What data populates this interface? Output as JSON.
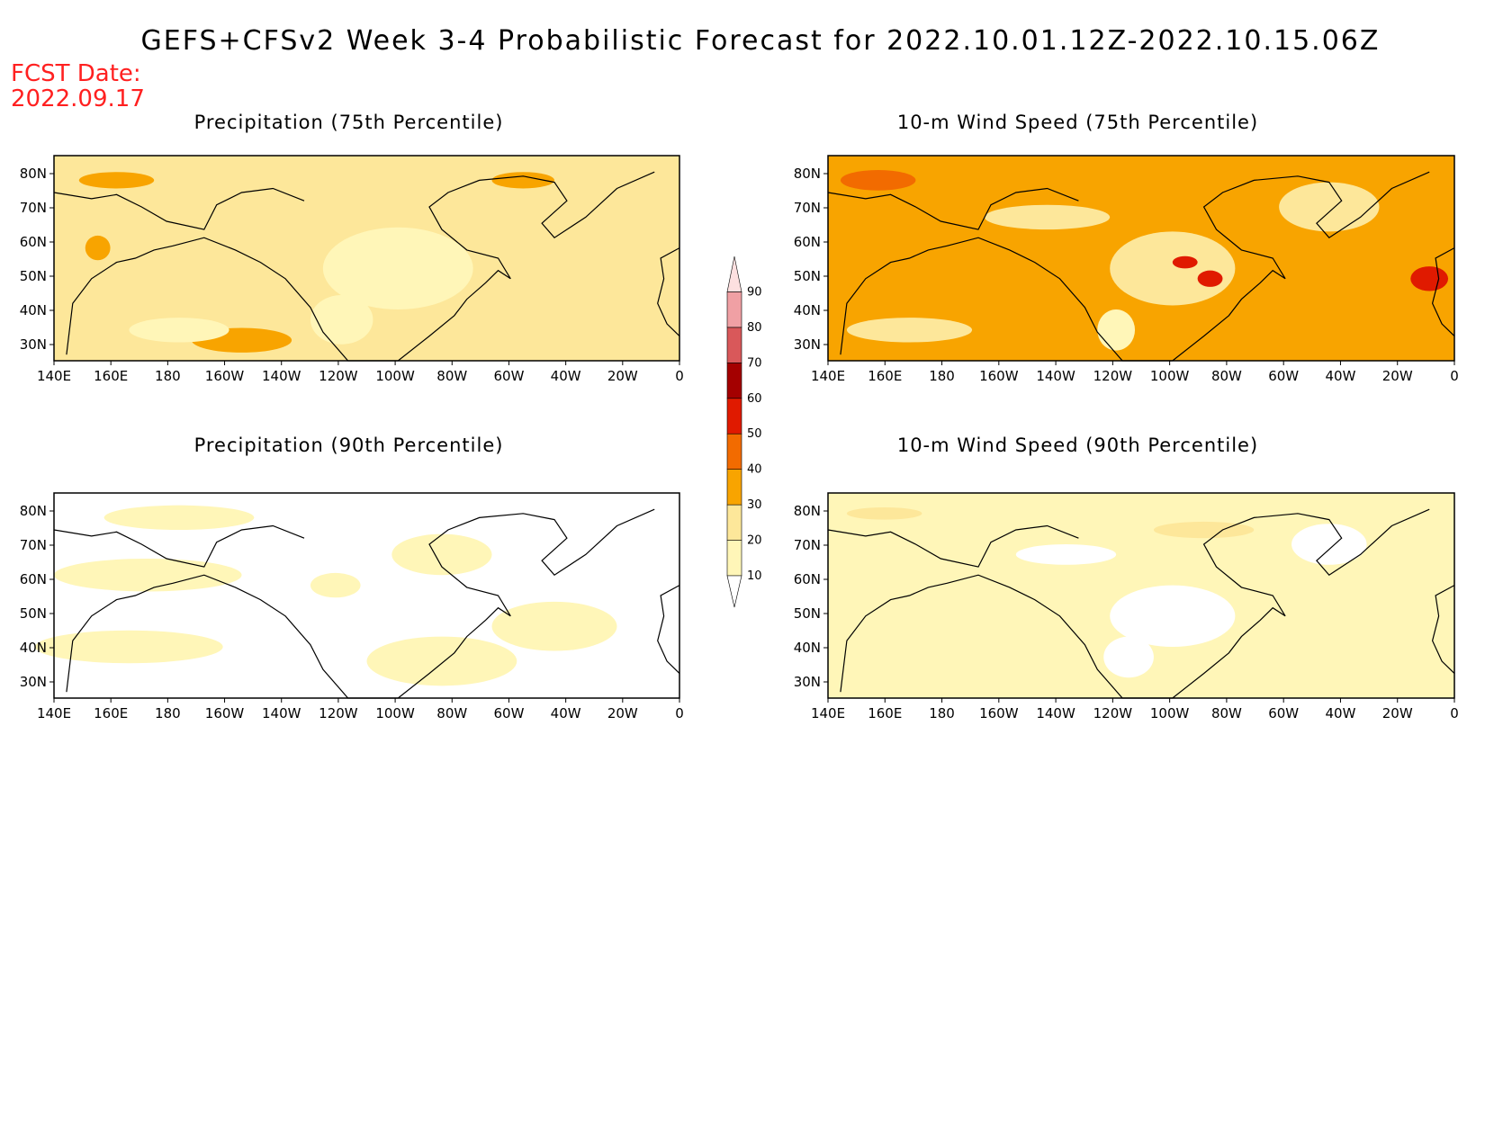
{
  "header": {
    "title": "GEFS+CFSv2 Week 3-4 Probabilistic Forecast for 2022.10.01.12Z-2022.10.15.06Z",
    "fcst_label": "FCST Date:",
    "fcst_date": "2022.09.17"
  },
  "panels": [
    {
      "id": "precip75",
      "title": "Precipitation (75th Percentile)",
      "bg": "#fde79a"
    },
    {
      "id": "wind75",
      "title": "10-m Wind Speed (75th Percentile)",
      "bg": "#f8a400"
    },
    {
      "id": "precip90",
      "title": "Precipitation (90th Percentile)",
      "bg": "#ffffff"
    },
    {
      "id": "wind90",
      "title": "10-m Wind Speed (90th Percentile)",
      "bg": "#fff6b8"
    }
  ],
  "axes": {
    "x_ticks": [
      "140E",
      "160E",
      "180",
      "160W",
      "140W",
      "120W",
      "100W",
      "80W",
      "60W",
      "40W",
      "20W",
      "0"
    ],
    "y_ticks": [
      "80N",
      "70N",
      "60N",
      "50N",
      "40N",
      "30N"
    ]
  },
  "colorbar": {
    "levels": [
      "10",
      "20",
      "30",
      "40",
      "50",
      "60",
      "70",
      "80",
      "90"
    ],
    "colors": [
      "#fff6b8",
      "#fde79a",
      "#f8a400",
      "#f26b00",
      "#e01a00",
      "#a40000",
      "#d9585a",
      "#f0a0a4",
      "#fde0e0"
    ]
  }
}
